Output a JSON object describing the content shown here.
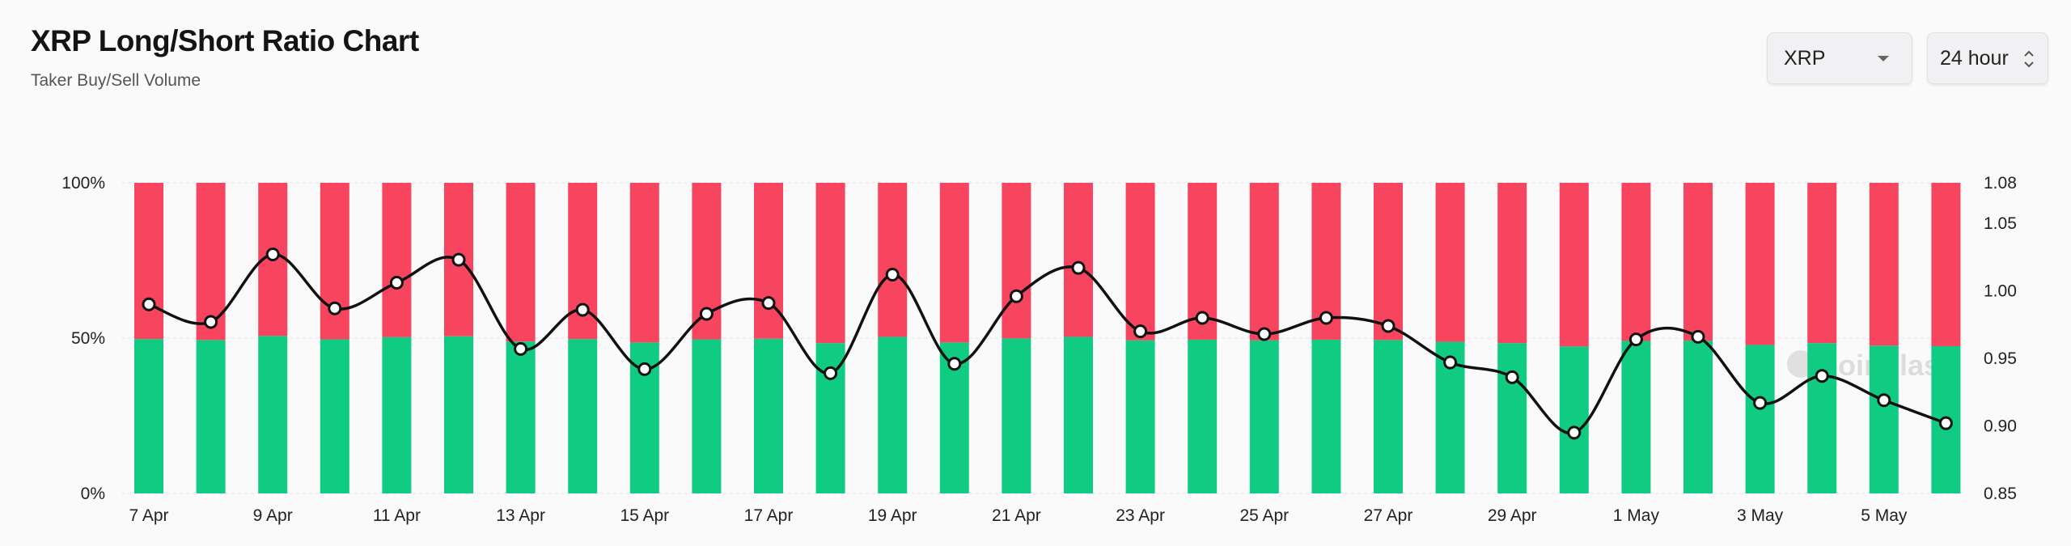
{
  "header": {
    "title": "XRP Long/Short Ratio Chart",
    "subtitle": "Taker Buy/Sell Volume"
  },
  "controls": {
    "coin": {
      "value": "XRP",
      "icon": "chevron-down-icon"
    },
    "interval": {
      "value": "24 hour",
      "icon": "updown-chevron-icon"
    }
  },
  "watermark": "coinglass",
  "chart_data": {
    "type": "bar",
    "stacked": true,
    "categories": [
      "7 Apr",
      "8 Apr",
      "9 Apr",
      "10 Apr",
      "11 Apr",
      "12 Apr",
      "13 Apr",
      "14 Apr",
      "15 Apr",
      "16 Apr",
      "17 Apr",
      "18 Apr",
      "19 Apr",
      "20 Apr",
      "21 Apr",
      "22 Apr",
      "23 Apr",
      "24 Apr",
      "25 Apr",
      "26 Apr",
      "27 Apr",
      "28 Apr",
      "29 Apr",
      "30 Apr",
      "1 May",
      "2 May",
      "3 May",
      "4 May",
      "5 May",
      "6 May"
    ],
    "x_tick_labels": [
      "7 Apr",
      "9 Apr",
      "11 Apr",
      "13 Apr",
      "15 Apr",
      "17 Apr",
      "19 Apr",
      "21 Apr",
      "23 Apr",
      "25 Apr",
      "27 Apr",
      "29 Apr",
      "1 May",
      "3 May",
      "5 May"
    ],
    "series": [
      {
        "axis": "left",
        "color": "#10cc82",
        "values": [
          49.7,
          49.4,
          50.7,
          49.6,
          50.3,
          50.6,
          48.9,
          49.7,
          48.6,
          49.6,
          49.8,
          48.4,
          50.4,
          48.6,
          49.9,
          50.4,
          49.3,
          49.5,
          49.3,
          49.5,
          49.4,
          48.8,
          48.4,
          47.3,
          49.1,
          49.2,
          47.8,
          48.4,
          47.6,
          47.4
        ]
      },
      {
        "axis": "left",
        "color": "#f7455f",
        "values": [
          50.3,
          50.6,
          49.3,
          50.4,
          49.7,
          49.4,
          51.1,
          50.3,
          51.4,
          50.4,
          50.2,
          51.6,
          49.6,
          51.4,
          50.1,
          49.6,
          50.7,
          50.5,
          50.7,
          50.5,
          50.6,
          51.2,
          51.6,
          52.7,
          50.9,
          50.8,
          52.2,
          51.6,
          52.4,
          52.6
        ]
      },
      {
        "type": "line",
        "axis": "right",
        "color": "#111111",
        "values": [
          0.99,
          0.977,
          1.027,
          0.987,
          1.006,
          1.023,
          0.957,
          0.986,
          0.942,
          0.983,
          0.991,
          0.939,
          1.012,
          0.946,
          0.996,
          1.017,
          0.97,
          0.98,
          0.968,
          0.98,
          0.974,
          0.947,
          0.936,
          0.895,
          0.964,
          0.966,
          0.917,
          0.937,
          0.919,
          0.902
        ]
      }
    ],
    "y_left": {
      "ylim": [
        0,
        100
      ],
      "ticks": [
        "0%",
        "50%",
        "100%"
      ],
      "tick_values": [
        0,
        50,
        100
      ]
    },
    "y_right": {
      "ylim": [
        0.85,
        1.08
      ],
      "ticks": [
        "0.85",
        "0.90",
        "0.95",
        "1.00",
        "1.05",
        "1.08"
      ],
      "tick_values": [
        0.85,
        0.9,
        0.95,
        1.0,
        1.05,
        1.08
      ]
    },
    "grid": true,
    "legend": "none"
  }
}
